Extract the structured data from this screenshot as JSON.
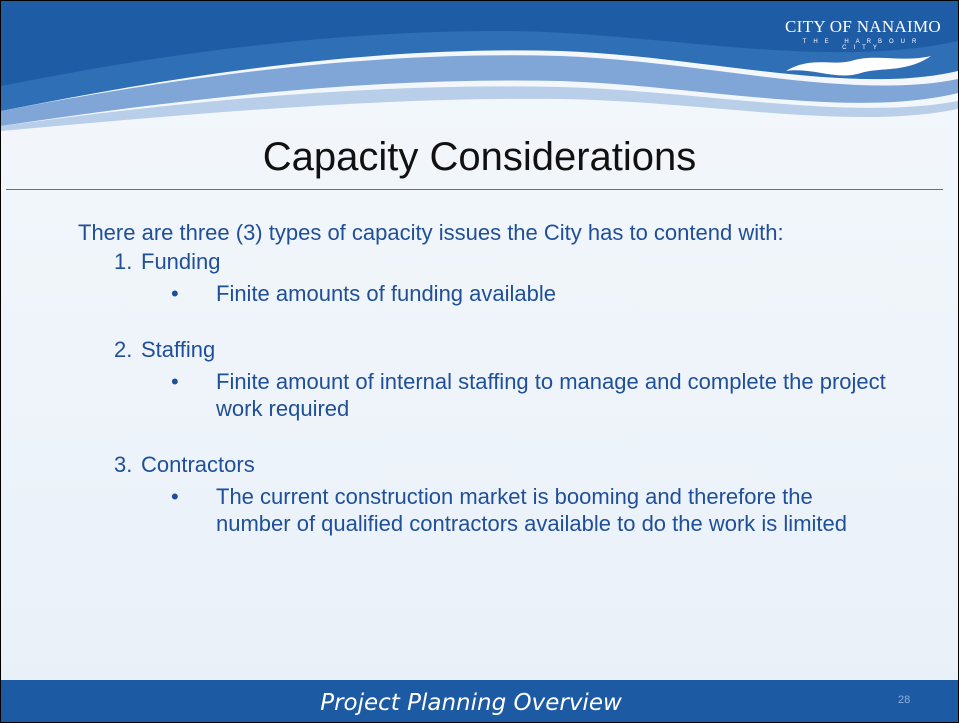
{
  "header": {
    "logo": {
      "name": "CITY OF NANAIMO",
      "tagline": "THE HARBOUR CITY"
    }
  },
  "title": "Capacity Considerations",
  "intro": "There are three (3) types of capacity issues the City has to contend with:",
  "items": [
    {
      "number": "1.",
      "name": "Funding",
      "bullets": [
        "Finite amounts of funding available"
      ]
    },
    {
      "number": "2.",
      "name": "Staffing",
      "bullets": [
        "Finite amount of internal staffing to manage and complete the project work required"
      ]
    },
    {
      "number": "3.",
      "name": "Contractors",
      "bullets": [
        "The current construction market is booming and therefore the number of qualified contractors available to do the work is limited"
      ]
    }
  ],
  "footer": {
    "text": "Project Planning Overview",
    "page": "28"
  }
}
